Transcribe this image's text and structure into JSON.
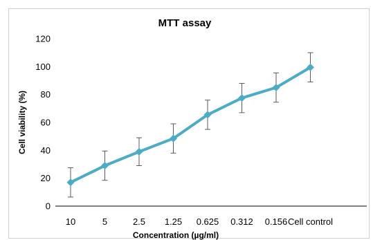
{
  "chart_data": {
    "type": "line",
    "title": "MTT assay",
    "xlabel": "Concentration (µg/ml)",
    "ylabel": "Cell viability (%)",
    "categories": [
      "10",
      "5",
      "2.5",
      "1.25",
      "0.625",
      "0.312",
      "0.156",
      "Cell control"
    ],
    "series": [
      {
        "values": [
          17,
          29,
          39,
          48.5,
          65.5,
          77.5,
          85,
          99.5
        ],
        "error": [
          10.5,
          10.5,
          10,
          10.5,
          10.5,
          10.5,
          10.5,
          10.5
        ]
      }
    ],
    "ylim": [
      0,
      120
    ],
    "yticks": [
      "0",
      "20",
      "40",
      "60",
      "80",
      "100",
      "120"
    ],
    "grid": false,
    "legend": "none",
    "color": "#4bacc6",
    "error_bar_color": "#595959",
    "marker": "diamond"
  }
}
